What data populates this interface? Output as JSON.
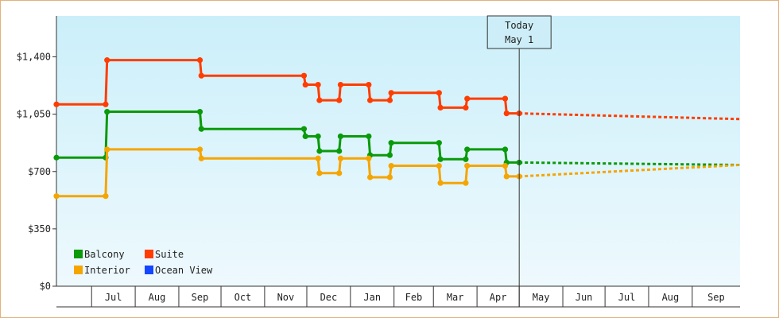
{
  "chart_data": {
    "type": "line",
    "step": true,
    "ylim": [
      0,
      1650
    ],
    "yticks": [
      {
        "value": 0,
        "label": "$0"
      },
      {
        "value": 350,
        "label": "$350"
      },
      {
        "value": 700,
        "label": "$700"
      },
      {
        "value": 1050,
        "label": "$1,050"
      },
      {
        "value": 1400,
        "label": "$1,400"
      }
    ],
    "x_range": [
      "2024-06-06",
      "2025-10-05"
    ],
    "month_labels": [
      {
        "label": "Jul",
        "date": "2024-07-01"
      },
      {
        "label": "Aug",
        "date": "2024-08-01"
      },
      {
        "label": "Sep",
        "date": "2024-09-01"
      },
      {
        "label": "Oct",
        "date": "2024-10-01"
      },
      {
        "label": "Nov",
        "date": "2024-11-01"
      },
      {
        "label": "Dec",
        "date": "2024-12-01"
      },
      {
        "label": "Jan",
        "date": "2025-01-01"
      },
      {
        "label": "Feb",
        "date": "2025-02-01"
      },
      {
        "label": "Mar",
        "date": "2025-03-01"
      },
      {
        "label": "Apr",
        "date": "2025-04-01"
      },
      {
        "label": "May",
        "date": "2025-05-01"
      },
      {
        "label": "Jun",
        "date": "2025-06-01"
      },
      {
        "label": "Jul",
        "date": "2025-07-01"
      },
      {
        "label": "Aug",
        "date": "2025-08-01"
      },
      {
        "label": "Sep",
        "date": "2025-09-01"
      }
    ],
    "today": {
      "label_line1": "Today",
      "label_line2": "May 1",
      "date": "2025-05-01"
    },
    "grid": false,
    "legend_position": "bottom-left",
    "series": [
      {
        "name": "Balcony",
        "color": "#0a9a0a",
        "points": [
          [
            "2024-06-06",
            785
          ],
          [
            "2024-07-11",
            785
          ],
          [
            "2024-07-12",
            1065
          ],
          [
            "2024-09-16",
            1065
          ],
          [
            "2024-09-17",
            960
          ],
          [
            "2024-11-29",
            960
          ],
          [
            "2024-11-30",
            915
          ],
          [
            "2024-12-09",
            915
          ],
          [
            "2024-12-10",
            825
          ],
          [
            "2024-12-24",
            825
          ],
          [
            "2024-12-25",
            915
          ],
          [
            "2025-01-14",
            915
          ],
          [
            "2025-01-15",
            800
          ],
          [
            "2025-01-29",
            800
          ],
          [
            "2025-01-30",
            875
          ],
          [
            "2025-03-05",
            875
          ],
          [
            "2025-03-06",
            775
          ],
          [
            "2025-03-24",
            775
          ],
          [
            "2025-03-25",
            835
          ],
          [
            "2025-04-21",
            835
          ],
          [
            "2025-04-22",
            755
          ],
          [
            "2025-05-01",
            755
          ]
        ],
        "forecast": [
          [
            "2025-05-01",
            755
          ],
          [
            "2025-10-05",
            740
          ]
        ]
      },
      {
        "name": "Suite",
        "color": "#ff3d00",
        "points": [
          [
            "2024-06-06",
            1110
          ],
          [
            "2024-07-11",
            1110
          ],
          [
            "2024-07-12",
            1380
          ],
          [
            "2024-09-16",
            1380
          ],
          [
            "2024-09-17",
            1285
          ],
          [
            "2024-11-29",
            1285
          ],
          [
            "2024-11-30",
            1230
          ],
          [
            "2024-12-09",
            1230
          ],
          [
            "2024-12-10",
            1135
          ],
          [
            "2024-12-24",
            1135
          ],
          [
            "2024-12-25",
            1230
          ],
          [
            "2025-01-14",
            1230
          ],
          [
            "2025-01-15",
            1135
          ],
          [
            "2025-01-29",
            1135
          ],
          [
            "2025-01-30",
            1180
          ],
          [
            "2025-03-05",
            1180
          ],
          [
            "2025-03-06",
            1090
          ],
          [
            "2025-03-24",
            1090
          ],
          [
            "2025-03-25",
            1145
          ],
          [
            "2025-04-21",
            1145
          ],
          [
            "2025-04-22",
            1055
          ],
          [
            "2025-05-01",
            1055
          ]
        ],
        "forecast": [
          [
            "2025-05-01",
            1055
          ],
          [
            "2025-10-05",
            1020
          ]
        ]
      },
      {
        "name": "Interior",
        "color": "#f5a500",
        "points": [
          [
            "2024-06-06",
            550
          ],
          [
            "2024-07-11",
            550
          ],
          [
            "2024-07-12",
            835
          ],
          [
            "2024-09-16",
            835
          ],
          [
            "2024-09-17",
            780
          ],
          [
            "2024-12-09",
            780
          ],
          [
            "2024-12-10",
            690
          ],
          [
            "2024-12-24",
            690
          ],
          [
            "2024-12-25",
            780
          ],
          [
            "2025-01-14",
            780
          ],
          [
            "2025-01-15",
            665
          ],
          [
            "2025-01-29",
            665
          ],
          [
            "2025-01-30",
            735
          ],
          [
            "2025-03-05",
            735
          ],
          [
            "2025-03-06",
            630
          ],
          [
            "2025-03-24",
            630
          ],
          [
            "2025-03-25",
            735
          ],
          [
            "2025-04-21",
            735
          ],
          [
            "2025-04-22",
            670
          ],
          [
            "2025-05-01",
            670
          ]
        ],
        "forecast": [
          [
            "2025-05-01",
            670
          ],
          [
            "2025-10-05",
            740
          ]
        ]
      },
      {
        "name": "Ocean View",
        "color": "#1446ff",
        "points": [],
        "forecast": []
      }
    ]
  }
}
